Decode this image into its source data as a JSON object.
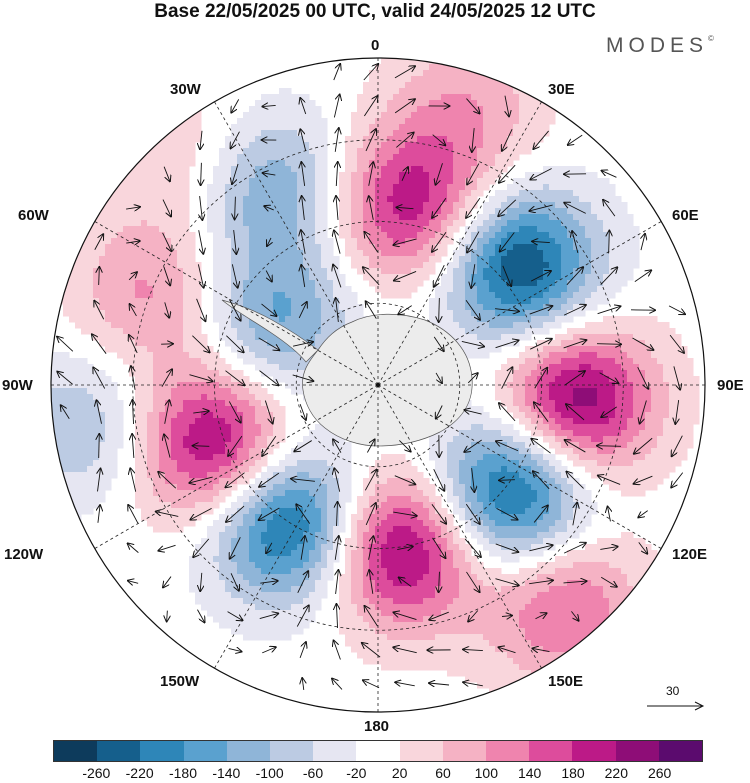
{
  "title": "Base 22/05/2025 00 UTC, valid 24/05/2025 12 UTC",
  "brand": "MODES",
  "brand_mark": "©",
  "longitude_labels": {
    "lon_0": "0",
    "lon_30e": "30E",
    "lon_60e": "60E",
    "lon_90e": "90E",
    "lon_120e": "120E",
    "lon_150e": "150E",
    "lon_180": "180",
    "lon_150w": "150W",
    "lon_120w": "120W",
    "lon_90w": "90W",
    "lon_60w": "60W",
    "lon_30w": "30W"
  },
  "reference_vector": {
    "value": "30"
  },
  "colorbar": {
    "ticks": [
      "-260",
      "-220",
      "-180",
      "-140",
      "-100",
      "-60",
      "-20",
      "20",
      "60",
      "100",
      "140",
      "180",
      "220",
      "260"
    ],
    "colors": [
      "#0d3b5c",
      "#155f8c",
      "#2e86b8",
      "#5aa1cf",
      "#8fb5d8",
      "#bccbe3",
      "#e6e6f2",
      "#ffffff",
      "#f9d6dc",
      "#f5b2c4",
      "#ef84ae",
      "#dd4c9c",
      "#bc1a87",
      "#8e0d77",
      "#5b0b6e"
    ]
  },
  "anomaly_centers": [
    {
      "lon": 10,
      "colat": 0.55,
      "value": 210
    },
    {
      "lon": 50,
      "colat": 0.56,
      "value": -270
    },
    {
      "lon": 95,
      "colat": 0.6,
      "value": 270
    },
    {
      "lon": 128,
      "colat": 0.52,
      "value": -280
    },
    {
      "lon": 172,
      "colat": 0.5,
      "value": 260
    },
    {
      "lon": 213,
      "colat": 0.5,
      "value": -270
    },
    {
      "lon": 250,
      "colat": 0.53,
      "value": 250
    },
    {
      "lon": 302,
      "colat": 0.37,
      "value": -150
    },
    {
      "lon": 332,
      "colat": 0.68,
      "value": -140
    },
    {
      "lon": 292,
      "colat": 0.75,
      "value": 110
    },
    {
      "lon": 18,
      "colat": 0.88,
      "value": 90
    },
    {
      "lon": 140,
      "colat": 0.88,
      "value": 150
    },
    {
      "lon": 262,
      "colat": 0.9,
      "value": -100
    },
    {
      "lon": 320,
      "colat": 0.92,
      "value": 60
    }
  ]
}
